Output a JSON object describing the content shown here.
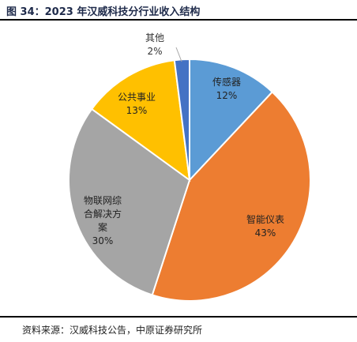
{
  "header": {
    "title": "图 34：2023 年汉威科技分行业收入结构"
  },
  "chart_data": {
    "type": "pie",
    "categories": [
      "传感器",
      "智能仪表",
      "物联网综合解决方案",
      "公共事业",
      "其他"
    ],
    "values": [
      12,
      43,
      30,
      13,
      2
    ],
    "data_labels": [
      "12%",
      "43%",
      "30%",
      "13%",
      "2%"
    ],
    "colors": [
      "#5b9bd5",
      "#ed7d31",
      "#a5a5a5",
      "#ffc000",
      "#4472c4"
    ],
    "legend": "none"
  },
  "footer": {
    "source": "资料来源：汉威科技公告，中原证券研究所"
  }
}
